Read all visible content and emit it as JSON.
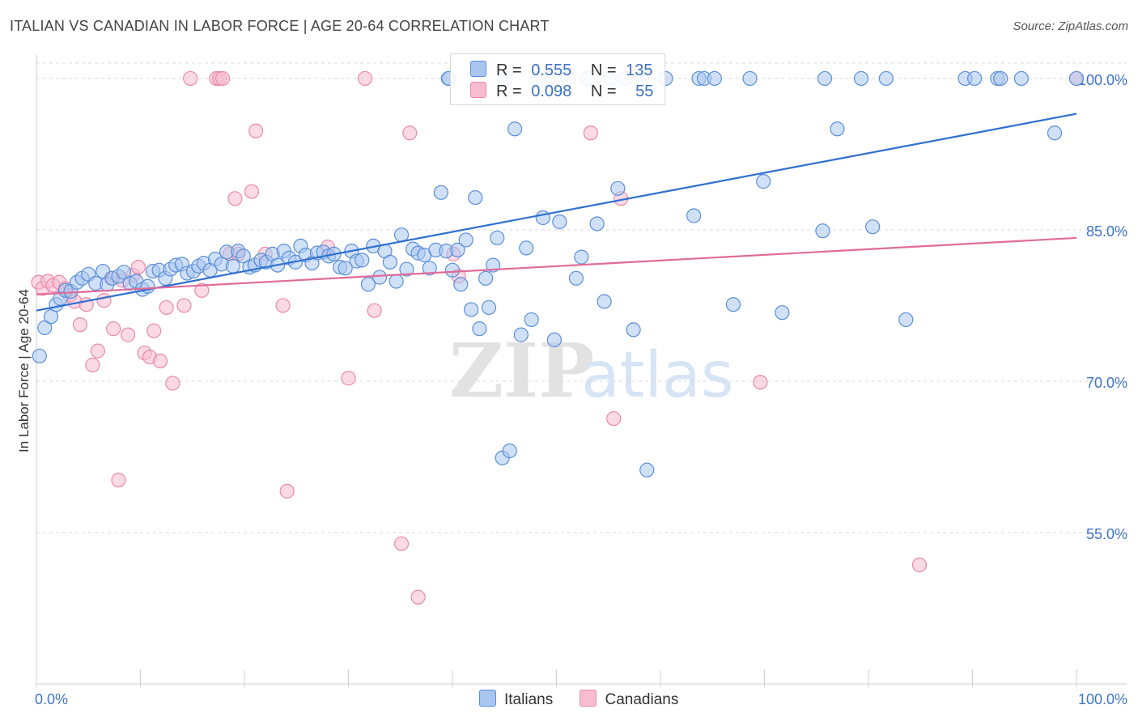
{
  "title": "ITALIAN VS CANADIAN IN LABOR FORCE | AGE 20-64 CORRELATION CHART",
  "source": "Source: ZipAtlas.com",
  "watermark": {
    "zip": "ZIP",
    "atlas": "atlas"
  },
  "legend": {
    "italians": {
      "r_label": "R =",
      "r_value": "0.555",
      "n_label": "N =",
      "n_value": "135"
    },
    "canadians": {
      "r_label": "R =",
      "r_value": "0.098",
      "n_label": "N =",
      "n_value": "55"
    }
  },
  "colors": {
    "italians_fill": "#a9c6f0",
    "italians_stroke": "#5b8fd8",
    "italians_line": "#2f6fd0",
    "canadians_fill": "#f7bcd0",
    "canadians_stroke": "#e98aa8",
    "canadians_line": "#e06b98",
    "tick_label": "#3f74c9",
    "grid": "#d9d9d9"
  },
  "chart_data": {
    "type": "scatter",
    "title": "ITALIAN VS CANADIAN IN LABOR FORCE | AGE 20-64 CORRELATION CHART",
    "ylabel": "In Labor Force | Age 20-64",
    "xlabel": "",
    "xlim": [
      0,
      100
    ],
    "ylim": [
      40,
      102
    ],
    "x_tick_labels": [
      "0.0%",
      "100.0%"
    ],
    "y_ticks": [
      55,
      70,
      85,
      100
    ],
    "y_tick_labels": [
      "55.0%",
      "70.0%",
      "85.0%",
      "100.0%"
    ],
    "grid": "horizontal dashed",
    "legend_position": "bottom-center",
    "series": [
      {
        "name": "Italians",
        "trend": [
          [
            0,
            77.0
          ],
          [
            100,
            96.5
          ]
        ],
        "points": [
          [
            0.3,
            72.5
          ],
          [
            0.8,
            75.3
          ],
          [
            1.4,
            76.4
          ],
          [
            1.9,
            77.6
          ],
          [
            2.3,
            78.2
          ],
          [
            2.8,
            79.0
          ],
          [
            3.3,
            78.9
          ],
          [
            3.9,
            79.8
          ],
          [
            4.4,
            80.2
          ],
          [
            5.0,
            80.6
          ],
          [
            5.7,
            79.7
          ],
          [
            6.4,
            80.9
          ],
          [
            6.8,
            79.6
          ],
          [
            7.3,
            80.2
          ],
          [
            7.9,
            80.4
          ],
          [
            8.4,
            80.8
          ],
          [
            9.0,
            79.7
          ],
          [
            9.6,
            79.9
          ],
          [
            10.2,
            79.1
          ],
          [
            10.7,
            79.4
          ],
          [
            11.2,
            80.9
          ],
          [
            11.8,
            81.0
          ],
          [
            12.4,
            80.2
          ],
          [
            12.9,
            81.1
          ],
          [
            13.4,
            81.5
          ],
          [
            14.0,
            81.6
          ],
          [
            14.5,
            80.7
          ],
          [
            15.1,
            80.9
          ],
          [
            15.6,
            81.4
          ],
          [
            16.1,
            81.7
          ],
          [
            16.7,
            81.0
          ],
          [
            17.2,
            82.1
          ],
          [
            17.8,
            81.6
          ],
          [
            18.3,
            82.8
          ],
          [
            18.9,
            81.4
          ],
          [
            19.4,
            82.9
          ],
          [
            19.9,
            82.4
          ],
          [
            20.5,
            81.3
          ],
          [
            21.0,
            81.5
          ],
          [
            21.6,
            82.0
          ],
          [
            22.1,
            81.8
          ],
          [
            22.7,
            82.6
          ],
          [
            23.2,
            81.5
          ],
          [
            23.8,
            82.9
          ],
          [
            24.3,
            82.2
          ],
          [
            24.9,
            81.8
          ],
          [
            25.4,
            83.4
          ],
          [
            25.9,
            82.5
          ],
          [
            26.5,
            81.7
          ],
          [
            27.0,
            82.7
          ],
          [
            27.6,
            82.8
          ],
          [
            28.1,
            82.4
          ],
          [
            28.6,
            82.6
          ],
          [
            29.2,
            81.3
          ],
          [
            29.7,
            81.2
          ],
          [
            30.3,
            82.9
          ],
          [
            30.8,
            81.9
          ],
          [
            31.3,
            82.0
          ],
          [
            31.9,
            79.6
          ],
          [
            32.4,
            83.4
          ],
          [
            33.0,
            80.3
          ],
          [
            33.5,
            82.9
          ],
          [
            34.0,
            81.8
          ],
          [
            34.6,
            79.9
          ],
          [
            35.1,
            84.5
          ],
          [
            35.6,
            81.1
          ],
          [
            36.2,
            83.1
          ],
          [
            36.7,
            82.7
          ],
          [
            37.3,
            82.5
          ],
          [
            37.8,
            81.2
          ],
          [
            38.4,
            83.0
          ],
          [
            38.9,
            88.7
          ],
          [
            39.4,
            82.9
          ],
          [
            39.7,
            100.0
          ],
          [
            40.0,
            81.0
          ],
          [
            40.5,
            83.0
          ],
          [
            40.8,
            79.6
          ],
          [
            41.3,
            84.0
          ],
          [
            41.8,
            77.1
          ],
          [
            42.2,
            88.2
          ],
          [
            42.6,
            75.2
          ],
          [
            43.2,
            80.2
          ],
          [
            43.5,
            77.3
          ],
          [
            43.9,
            81.5
          ],
          [
            44.3,
            84.2
          ],
          [
            44.8,
            62.4
          ],
          [
            45.1,
            100.0
          ],
          [
            45.5,
            63.1
          ],
          [
            46.0,
            95.0
          ],
          [
            46.6,
            74.6
          ],
          [
            47.1,
            83.2
          ],
          [
            47.6,
            76.1
          ],
          [
            48.2,
            100.0
          ],
          [
            48.7,
            86.2
          ],
          [
            49.2,
            100.0
          ],
          [
            49.8,
            74.1
          ],
          [
            50.3,
            85.8
          ],
          [
            51.1,
            100.0
          ],
          [
            51.9,
            80.2
          ],
          [
            52.4,
            82.3
          ],
          [
            53.0,
            100.0
          ],
          [
            53.9,
            85.6
          ],
          [
            54.6,
            77.9
          ],
          [
            55.2,
            100.0
          ],
          [
            55.9,
            89.1
          ],
          [
            56.7,
            100.0
          ],
          [
            57.4,
            75.1
          ],
          [
            58.2,
            100.0
          ],
          [
            58.7,
            61.2
          ],
          [
            60.5,
            100.0
          ],
          [
            63.2,
            86.4
          ],
          [
            63.7,
            100.0
          ],
          [
            64.2,
            100.0
          ],
          [
            65.2,
            100.0
          ],
          [
            67.0,
            77.6
          ],
          [
            68.6,
            100.0
          ],
          [
            69.9,
            89.8
          ],
          [
            71.7,
            76.8
          ],
          [
            75.6,
            84.9
          ],
          [
            75.8,
            100.0
          ],
          [
            77.0,
            95.0
          ],
          [
            79.3,
            100.0
          ],
          [
            80.4,
            85.3
          ],
          [
            81.7,
            100.0
          ],
          [
            83.6,
            76.1
          ],
          [
            89.3,
            100.0
          ],
          [
            90.2,
            100.0
          ],
          [
            92.4,
            100.0
          ],
          [
            92.7,
            100.0
          ],
          [
            94.7,
            100.0
          ],
          [
            97.9,
            94.6
          ],
          [
            100.0,
            100.0
          ],
          [
            39.6,
            100.0
          ]
        ]
      },
      {
        "name": "Canadians",
        "trend": [
          [
            0,
            78.6
          ],
          [
            100,
            84.2
          ]
        ],
        "points": [
          [
            0.2,
            79.8
          ],
          [
            0.6,
            79.2
          ],
          [
            1.1,
            79.9
          ],
          [
            1.6,
            79.5
          ],
          [
            2.2,
            79.8
          ],
          [
            2.8,
            79.2
          ],
          [
            3.2,
            78.5
          ],
          [
            3.7,
            77.9
          ],
          [
            4.2,
            75.6
          ],
          [
            4.8,
            77.6
          ],
          [
            5.4,
            71.6
          ],
          [
            5.9,
            73.0
          ],
          [
            6.5,
            78.0
          ],
          [
            7.2,
            80.2
          ],
          [
            7.4,
            75.2
          ],
          [
            7.9,
            60.2
          ],
          [
            8.3,
            80.0
          ],
          [
            8.8,
            74.6
          ],
          [
            9.3,
            80.5
          ],
          [
            9.8,
            81.3
          ],
          [
            10.4,
            72.8
          ],
          [
            10.9,
            72.4
          ],
          [
            11.3,
            75.0
          ],
          [
            11.9,
            72.0
          ],
          [
            12.5,
            77.3
          ],
          [
            13.1,
            69.8
          ],
          [
            14.2,
            77.5
          ],
          [
            14.8,
            100.0
          ],
          [
            15.9,
            79.0
          ],
          [
            17.3,
            100.0
          ],
          [
            17.6,
            100.0
          ],
          [
            17.9,
            100.0
          ],
          [
            18.6,
            82.6
          ],
          [
            19.1,
            88.1
          ],
          [
            19.4,
            82.6
          ],
          [
            20.7,
            88.8
          ],
          [
            21.1,
            94.8
          ],
          [
            22.0,
            82.6
          ],
          [
            23.7,
            77.5
          ],
          [
            24.1,
            59.1
          ],
          [
            28.0,
            83.3
          ],
          [
            30.0,
            70.3
          ],
          [
            31.6,
            100.0
          ],
          [
            32.5,
            77.0
          ],
          [
            35.1,
            53.9
          ],
          [
            35.9,
            94.6
          ],
          [
            36.7,
            48.6
          ],
          [
            40.1,
            82.6
          ],
          [
            40.6,
            80.4
          ],
          [
            53.3,
            94.6
          ],
          [
            55.5,
            66.3
          ],
          [
            56.2,
            88.1
          ],
          [
            69.6,
            69.9
          ],
          [
            84.9,
            51.8
          ],
          [
            100.0,
            100.0
          ]
        ]
      }
    ]
  }
}
